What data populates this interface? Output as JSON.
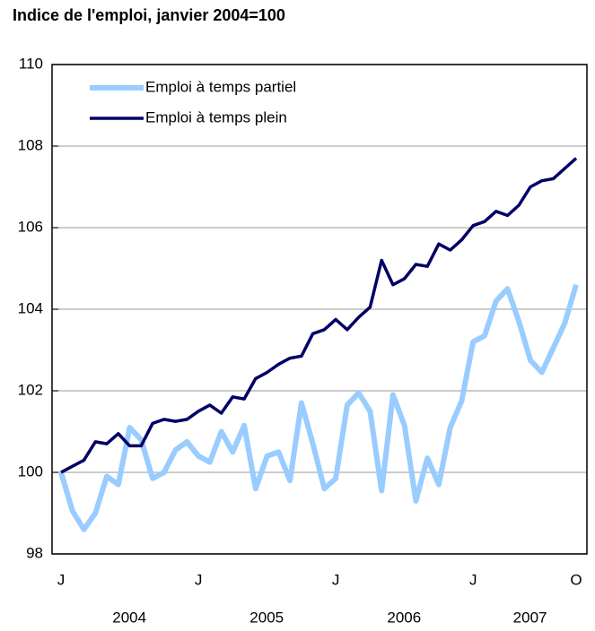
{
  "chart_data": {
    "type": "line",
    "title": "Indice de l'emploi, janvier 2004=100",
    "categories": [
      "J",
      null,
      null,
      null,
      null,
      null,
      null,
      null,
      null,
      null,
      null,
      null,
      "J",
      null,
      null,
      null,
      null,
      null,
      null,
      null,
      null,
      null,
      null,
      null,
      "J",
      null,
      null,
      null,
      null,
      null,
      null,
      null,
      null,
      null,
      null,
      null,
      "J",
      null,
      null,
      null,
      null,
      null,
      null,
      null,
      null,
      "O"
    ],
    "year_labels": [
      "2004",
      "2005",
      "2006",
      "2007"
    ],
    "series": [
      {
        "name": "Emploi à temps partiel",
        "color": "#99ccff",
        "values": [
          100.0,
          99.05,
          98.6,
          99.0,
          99.9,
          99.7,
          101.1,
          100.8,
          99.85,
          100.0,
          100.55,
          100.75,
          100.4,
          100.25,
          101.0,
          100.5,
          101.15,
          99.6,
          100.4,
          100.5,
          99.8,
          101.7,
          100.7,
          99.6,
          99.85,
          101.65,
          101.95,
          101.5,
          99.55,
          101.9,
          101.15,
          99.3,
          100.35,
          99.7,
          101.1,
          101.75,
          103.2,
          103.35,
          104.2,
          104.5,
          103.7,
          102.75,
          102.45,
          103.05,
          103.65,
          104.6
        ]
      },
      {
        "name": "Emploi à temps plein",
        "color": "#000066",
        "values": [
          100.0,
          100.15,
          100.3,
          100.75,
          100.7,
          100.95,
          100.65,
          100.65,
          101.2,
          101.3,
          101.25,
          101.3,
          101.5,
          101.65,
          101.45,
          101.85,
          101.8,
          102.3,
          102.45,
          102.65,
          102.8,
          102.85,
          103.4,
          103.5,
          103.75,
          103.5,
          103.8,
          104.05,
          105.2,
          104.6,
          104.75,
          105.1,
          105.05,
          105.6,
          105.45,
          105.7,
          106.05,
          106.15,
          106.4,
          106.3,
          106.55,
          107.0,
          107.15,
          107.2,
          107.45,
          107.7
        ]
      }
    ],
    "ylim": [
      98,
      110
    ],
    "yticks": [
      98,
      100,
      102,
      104,
      106,
      108,
      110
    ],
    "grid": true,
    "legend": "top-left"
  }
}
